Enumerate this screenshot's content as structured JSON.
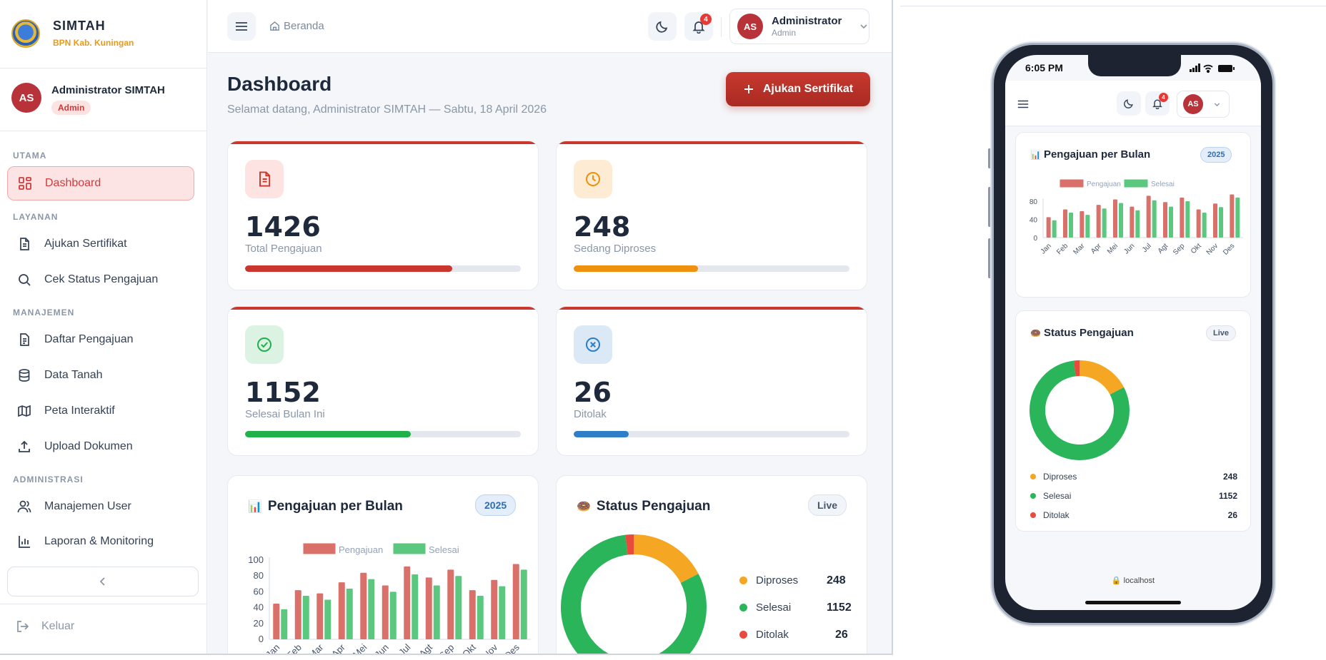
{
  "brand": {
    "title": "SIMTAH",
    "subtitle": "BPN Kab. Kuningan"
  },
  "profile": {
    "initials": "AS",
    "name": "Administrator SIMTAH",
    "role": "Admin"
  },
  "nav": {
    "sections": {
      "utama": "UTAMA",
      "layanan": "LAYANAN",
      "manajemen": "MANAJEMEN",
      "administrasi": "ADMINISTRASI"
    },
    "items": [
      {
        "label": "Dashboard",
        "icon": "grid-icon",
        "active": true
      },
      {
        "label": "Ajukan Sertifikat",
        "icon": "document-icon"
      },
      {
        "label": "Cek Status Pengajuan",
        "icon": "search-icon"
      },
      {
        "label": "Daftar Pengajuan",
        "icon": "document-list-icon"
      },
      {
        "label": "Data Tanah",
        "icon": "database-icon"
      },
      {
        "label": "Peta Interaktif",
        "icon": "map-icon"
      },
      {
        "label": "Upload Dokumen",
        "icon": "upload-icon"
      },
      {
        "label": "Manajemen User",
        "icon": "users-icon"
      },
      {
        "label": "Laporan & Monitoring",
        "icon": "bar-chart-icon"
      }
    ],
    "logout": "Keluar"
  },
  "topbar": {
    "breadcrumb": "Beranda",
    "notif_count": "4",
    "user_initials": "AS",
    "user_name": "Administrator",
    "user_role": "Admin"
  },
  "page": {
    "title": "Dashboard",
    "subtitle": "Selamat datang, Administrator SIMTAH — Sabtu, 18 April 2026",
    "primary_button": "Ajukan Sertifikat"
  },
  "stats": [
    {
      "value": "1426",
      "label": "Total Pengajuan",
      "progress": 0.75,
      "color": "#c8362d",
      "bg": "#fde3e1",
      "icon": "document-icon"
    },
    {
      "value": "248",
      "label": "Sedang Diproses",
      "progress": 0.45,
      "color": "#f0900f",
      "bg": "#fdecd3",
      "icon": "clock-icon"
    },
    {
      "value": "1152",
      "label": "Selesai Bulan Ini",
      "progress": 0.6,
      "color": "#22b04b",
      "bg": "#dcf3e3",
      "icon": "check-circle-icon"
    },
    {
      "value": "26",
      "label": "Ditolak",
      "progress": 0.2,
      "color": "#2d7ec7",
      "bg": "#dbe9f6",
      "icon": "x-circle-icon"
    }
  ],
  "bar_card": {
    "title": "Pengajuan per Bulan",
    "badge": "2025"
  },
  "donut_card": {
    "title": "Status Pengajuan",
    "badge": "Live",
    "legend": [
      {
        "label": "Diproses",
        "value": "248",
        "color": "#f5a623"
      },
      {
        "label": "Selesai",
        "value": "1152",
        "color": "#2bb55a"
      },
      {
        "label": "Ditolak",
        "value": "26",
        "color": "#e84a3c"
      }
    ]
  },
  "phone": {
    "time": "6:05 PM",
    "notif_count": "4",
    "user_initials": "AS",
    "url": "localhost"
  },
  "chart_data": [
    {
      "type": "bar",
      "title": "Pengajuan per Bulan",
      "categories": [
        "Jan",
        "Feb",
        "Mar",
        "Apr",
        "Mei",
        "Jun",
        "Jul",
        "Agt",
        "Sep",
        "Okt",
        "Nov",
        "Des"
      ],
      "series": [
        {
          "name": "Pengajuan",
          "values": [
            45,
            62,
            58,
            72,
            84,
            68,
            92,
            78,
            88,
            62,
            75,
            95
          ],
          "color": "#d9706a"
        },
        {
          "name": "Selesai",
          "values": [
            38,
            55,
            50,
            64,
            76,
            60,
            82,
            68,
            80,
            55,
            67,
            88
          ],
          "color": "#5cc77f"
        }
      ],
      "ylim": [
        0,
        100
      ],
      "yticks_desktop": [
        0,
        20,
        40,
        60,
        80,
        100
      ],
      "yticks_mobile": [
        0,
        40,
        80
      ],
      "legend_position": "top",
      "grid": false
    },
    {
      "type": "pie",
      "title": "Status Pengajuan",
      "labels": [
        "Diproses",
        "Selesai",
        "Ditolak"
      ],
      "values": [
        248,
        1152,
        26
      ],
      "colors": [
        "#f5a623",
        "#2bb55a",
        "#e84a3c"
      ],
      "legend_position": "right"
    }
  ]
}
